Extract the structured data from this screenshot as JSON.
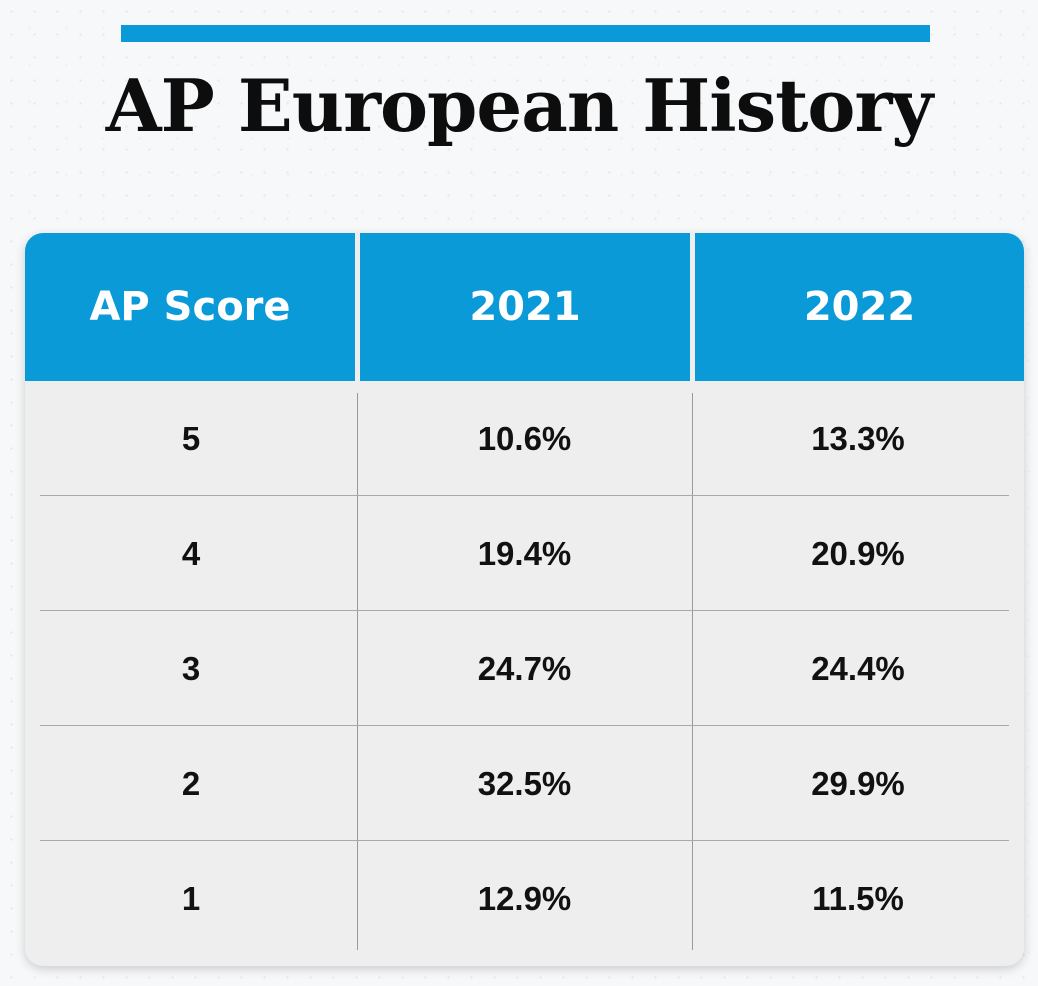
{
  "title": "AP European History",
  "colors": {
    "accent": "#0b9ad8",
    "table_body": "#eeeeee",
    "text": "#111111"
  },
  "chart_data": {
    "type": "table",
    "columns": [
      "AP Score",
      "2021",
      "2022"
    ],
    "rows": [
      [
        "5",
        "10.6%",
        "13.3%"
      ],
      [
        "4",
        "19.4%",
        "20.9%"
      ],
      [
        "3",
        "24.7%",
        "24.4%"
      ],
      [
        "2",
        "32.5%",
        "29.9%"
      ],
      [
        "1",
        "12.9%",
        "11.5%"
      ]
    ]
  }
}
